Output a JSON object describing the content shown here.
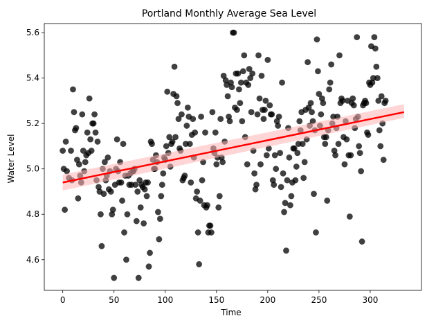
{
  "chart_data": {
    "type": "scatter",
    "title": "Portland Monthly Average Sea Level",
    "xlabel": "Time",
    "ylabel": "Water Level",
    "xlim": [
      -18,
      350
    ],
    "ylim": [
      4.465,
      5.64
    ],
    "xticks": [
      0,
      50,
      100,
      150,
      200,
      250,
      300
    ],
    "yticks": [
      4.6,
      4.8,
      5.0,
      5.2,
      5.4,
      5.6
    ],
    "grid": false,
    "colors": {
      "points": "#000000",
      "regression_line": "#ff0000",
      "confidence_band": "#ffb3b3"
    },
    "regression": {
      "x": [
        0,
        333
      ],
      "y": [
        4.94,
        5.25
      ],
      "ci_lower_y": [
        4.905,
        5.225
      ],
      "ci_upper_y": [
        4.975,
        5.285
      ]
    },
    "points": [
      [
        0,
        5.08
      ],
      [
        1,
        5.0
      ],
      [
        2,
        4.82
      ],
      [
        3,
        5.12
      ],
      [
        4,
        4.99
      ],
      [
        6,
        4.96
      ],
      [
        8,
        5.08
      ],
      [
        9,
        4.95
      ],
      [
        10,
        5.35
      ],
      [
        11,
        5.25
      ],
      [
        12,
        5.17
      ],
      [
        13,
        5.18
      ],
      [
        14,
        5.04
      ],
      [
        15,
        4.87
      ],
      [
        16,
        5.02
      ],
      [
        17,
        4.97
      ],
      [
        18,
        4.94
      ],
      [
        19,
        5.24
      ],
      [
        20,
        5.08
      ],
      [
        21,
        4.99
      ],
      [
        22,
        5.03
      ],
      [
        23,
        5.06
      ],
      [
        24,
        5.16
      ],
      [
        25,
        5.07
      ],
      [
        26,
        5.31
      ],
      [
        27,
        5.13
      ],
      [
        28,
        5.08
      ],
      [
        29,
        5.2
      ],
      [
        30,
        5.2
      ],
      [
        31,
        5.24
      ],
      [
        32,
        5.16
      ],
      [
        33,
        4.95
      ],
      [
        34,
        5.12
      ],
      [
        35,
        4.92
      ],
      [
        36,
        4.9
      ],
      [
        37,
        4.8
      ],
      [
        38,
        4.66
      ],
      [
        39,
        5.0
      ],
      [
        40,
        4.89
      ],
      [
        41,
        5.03
      ],
      [
        42,
        4.95
      ],
      [
        43,
        4.97
      ],
      [
        44,
        5.05
      ],
      [
        45,
        4.91
      ],
      [
        46,
        4.99
      ],
      [
        47,
        4.9
      ],
      [
        48,
        4.8
      ],
      [
        49,
        4.82
      ],
      [
        50,
        4.52
      ],
      [
        51,
        4.93
      ],
      [
        52,
        5.0
      ],
      [
        53,
        5.13
      ],
      [
        54,
        4.99
      ],
      [
        55,
        4.94
      ],
      [
        56,
        5.03
      ],
      [
        57,
        4.94
      ],
      [
        58,
        4.86
      ],
      [
        59,
        5.11
      ],
      [
        60,
        4.72
      ],
      [
        61,
        4.97
      ],
      [
        62,
        4.6
      ],
      [
        63,
        4.8
      ],
      [
        64,
        4.97
      ],
      [
        65,
        4.93
      ],
      [
        66,
        4.98
      ],
      [
        67,
        4.93
      ],
      [
        68,
        4.99
      ],
      [
        69,
        4.99
      ],
      [
        70,
        5.0
      ],
      [
        71,
        4.93
      ],
      [
        72,
        4.77
      ],
      [
        73,
        4.9
      ],
      [
        74,
        4.52
      ],
      [
        75,
        4.95
      ],
      [
        76,
        4.83
      ],
      [
        77,
        4.93
      ],
      [
        78,
        4.92
      ],
      [
        79,
        4.76
      ],
      [
        80,
        4.91
      ],
      [
        81,
        4.94
      ],
      [
        82,
        4.88
      ],
      [
        83,
        4.94
      ],
      [
        84,
        4.57
      ],
      [
        85,
        4.63
      ],
      [
        86,
        5.12
      ],
      [
        87,
        5.11
      ],
      [
        88,
        5.04
      ],
      [
        89,
        5.0
      ],
      [
        90,
        5.0
      ],
      [
        91,
        5.06
      ],
      [
        92,
        5.03
      ],
      [
        93,
        4.81
      ],
      [
        94,
        4.69
      ],
      [
        95,
        4.78
      ],
      [
        96,
        4.88
      ],
      [
        97,
        4.93
      ],
      [
        98,
        4.98
      ],
      [
        99,
        5.05
      ],
      [
        100,
        5.04
      ],
      [
        101,
        5.1
      ],
      [
        102,
        5.34
      ],
      [
        103,
        5.07
      ],
      [
        104,
        5.14
      ],
      [
        105,
        5.01
      ],
      [
        106,
        5.11
      ],
      [
        107,
        5.12
      ],
      [
        108,
        5.33
      ],
      [
        109,
        5.45
      ],
      [
        110,
        5.14
      ],
      [
        111,
        5.32
      ],
      [
        112,
        5.29
      ],
      [
        113,
        5.22
      ],
      [
        114,
        5.09
      ],
      [
        115,
        5.08
      ],
      [
        116,
        5.24
      ],
      [
        117,
        4.95
      ],
      [
        118,
        4.96
      ],
      [
        119,
        4.97
      ],
      [
        120,
        5.11
      ],
      [
        121,
        5.19
      ],
      [
        122,
        5.27
      ],
      [
        123,
        5.23
      ],
      [
        124,
        5.11
      ],
      [
        125,
        4.94
      ],
      [
        126,
        5.15
      ],
      [
        127,
        5.22
      ],
      [
        128,
        5.05
      ],
      [
        129,
        5.16
      ],
      [
        130,
        4.87
      ],
      [
        131,
        4.9
      ],
      [
        132,
        4.72
      ],
      [
        133,
        4.58
      ],
      [
        134,
        4.86
      ],
      [
        135,
        5.23
      ],
      [
        136,
        4.95
      ],
      [
        137,
        5.03
      ],
      [
        138,
        4.84
      ],
      [
        139,
        5.16
      ],
      [
        140,
        4.83
      ],
      [
        141,
        4.84
      ],
      [
        142,
        4.72
      ],
      [
        143,
        4.75
      ],
      [
        144,
        4.75
      ],
      [
        145,
        4.72
      ],
      [
        146,
        5.25
      ],
      [
        147,
        5.09
      ],
      [
        148,
        5.07
      ],
      [
        149,
        5.16
      ],
      [
        150,
        5.02
      ],
      [
        151,
        5.05
      ],
      [
        152,
        4.83
      ],
      [
        153,
        4.88
      ],
      [
        154,
        5.22
      ],
      [
        155,
        5.05
      ],
      [
        156,
        5.03
      ],
      [
        157,
        5.41
      ],
      [
        158,
        5.12
      ],
      [
        159,
        5.39
      ],
      [
        160,
        5.37
      ],
      [
        161,
        5.32
      ],
      [
        162,
        5.23
      ],
      [
        163,
        5.21
      ],
      [
        164,
        5.38
      ],
      [
        165,
        5.36
      ],
      [
        166,
        5.6
      ],
      [
        167,
        5.6
      ],
      [
        168,
        5.27
      ],
      [
        169,
        5.42
      ],
      [
        170,
        5.26
      ],
      [
        171,
        5.42
      ],
      [
        172,
        5.35
      ],
      [
        173,
        5.29
      ],
      [
        174,
        5.38
      ],
      [
        175,
        5.21
      ],
      [
        176,
        5.43
      ],
      [
        177,
        5.5
      ],
      [
        178,
        5.14
      ],
      [
        179,
        5.38
      ],
      [
        180,
        5.02
      ],
      [
        181,
        5.37
      ],
      [
        182,
        5.44
      ],
      [
        183,
        5.4
      ],
      [
        184,
        5.25
      ],
      [
        185,
        5.42
      ],
      [
        186,
        5.08
      ],
      [
        187,
        4.98
      ],
      [
        188,
        4.91
      ],
      [
        189,
        4.93
      ],
      [
        190,
        5.24
      ],
      [
        191,
        5.5
      ],
      [
        192,
        5.31
      ],
      [
        193,
        5.02
      ],
      [
        194,
        5.41
      ],
      [
        195,
        5.26
      ],
      [
        196,
        5.22
      ],
      [
        197,
        5.26
      ],
      [
        198,
        5.3
      ],
      [
        199,
        5.06
      ],
      [
        200,
        5.48
      ],
      [
        201,
        5.09
      ],
      [
        202,
        5.28
      ],
      [
        203,
        5.24
      ],
      [
        204,
        5.24
      ],
      [
        205,
        4.95
      ],
      [
        206,
        4.93
      ],
      [
        207,
        5.06
      ],
      [
        208,
        5.0
      ],
      [
        209,
        5.21
      ],
      [
        210,
        5.19
      ],
      [
        211,
        5.23
      ],
      [
        212,
        5.07
      ],
      [
        213,
        4.92
      ],
      [
        214,
        5.38
      ],
      [
        215,
        4.98
      ],
      [
        216,
        4.81
      ],
      [
        217,
        4.85
      ],
      [
        218,
        4.64
      ],
      [
        219,
        4.95
      ],
      [
        220,
        5.18
      ],
      [
        221,
        5.05
      ],
      [
        222,
        4.84
      ],
      [
        223,
        4.88
      ],
      [
        224,
        4.94
      ],
      [
        225,
        5.09
      ],
      [
        226,
        5.09
      ],
      [
        227,
        4.95
      ],
      [
        228,
        5.01
      ],
      [
        229,
        5.07
      ],
      [
        230,
        5.11
      ],
      [
        231,
        5.21
      ],
      [
        232,
        5.17
      ],
      [
        233,
        5.25
      ],
      [
        234,
        5.11
      ],
      [
        235,
        4.96
      ],
      [
        236,
        5.03
      ],
      [
        237,
        5.26
      ],
      [
        238,
        5.13
      ],
      [
        239,
        5.47
      ],
      [
        240,
        5.27
      ],
      [
        241,
        5.19
      ],
      [
        242,
        5.29
      ],
      [
        243,
        5.25
      ],
      [
        244,
        5.21
      ],
      [
        245,
        4.89
      ],
      [
        246,
        5.17
      ],
      [
        247,
        4.72
      ],
      [
        248,
        5.57
      ],
      [
        249,
        5.43
      ],
      [
        250,
        5.33
      ],
      [
        251,
        5.19
      ],
      [
        252,
        5.24
      ],
      [
        253,
        5.31
      ],
      [
        254,
        5.29
      ],
      [
        255,
        5.14
      ],
      [
        256,
        5.11
      ],
      [
        257,
        5.14
      ],
      [
        258,
        4.86
      ],
      [
        259,
        5.17
      ],
      [
        260,
        5.35
      ],
      [
        261,
        5.38
      ],
      [
        262,
        5.46
      ],
      [
        263,
        5.2
      ],
      [
        264,
        5.23
      ],
      [
        265,
        5.08
      ],
      [
        266,
        5.06
      ],
      [
        267,
        5.18
      ],
      [
        268,
        5.23
      ],
      [
        269,
        5.11
      ],
      [
        270,
        5.5
      ],
      [
        271,
        5.29
      ],
      [
        272,
        5.31
      ],
      [
        273,
        5.3
      ],
      [
        274,
        5.14
      ],
      [
        275,
        5.02
      ],
      [
        276,
        5.21
      ],
      [
        277,
        5.13
      ],
      [
        278,
        5.3
      ],
      [
        279,
        5.06
      ],
      [
        280,
        4.79
      ],
      [
        281,
        5.06
      ],
      [
        282,
        5.29
      ],
      [
        283,
        5.31
      ],
      [
        284,
        5.28
      ],
      [
        285,
        5.18
      ],
      [
        286,
        5.22
      ],
      [
        287,
        5.58
      ],
      [
        288,
        5.23
      ],
      [
        289,
        5.1
      ],
      [
        290,
        5.07
      ],
      [
        291,
        4.99
      ],
      [
        292,
        4.68
      ],
      [
        293,
        5.28
      ],
      [
        294,
        5.29
      ],
      [
        295,
        5.3
      ],
      [
        296,
        5.29
      ],
      [
        297,
        5.16
      ],
      [
        298,
        5.15
      ],
      [
        299,
        5.38
      ],
      [
        300,
        5.37
      ],
      [
        301,
        5.54
      ],
      [
        302,
        5.38
      ],
      [
        303,
        5.4
      ],
      [
        304,
        5.58
      ],
      [
        305,
        5.53
      ],
      [
        306,
        5.45
      ],
      [
        307,
        5.4
      ],
      [
        308,
        5.3
      ],
      [
        309,
        5.17
      ],
      [
        310,
        5.1
      ],
      [
        311,
        5.32
      ],
      [
        312,
        5.2
      ],
      [
        313,
        5.04
      ],
      [
        314,
        5.29
      ],
      [
        315,
        5.3
      ]
    ]
  }
}
